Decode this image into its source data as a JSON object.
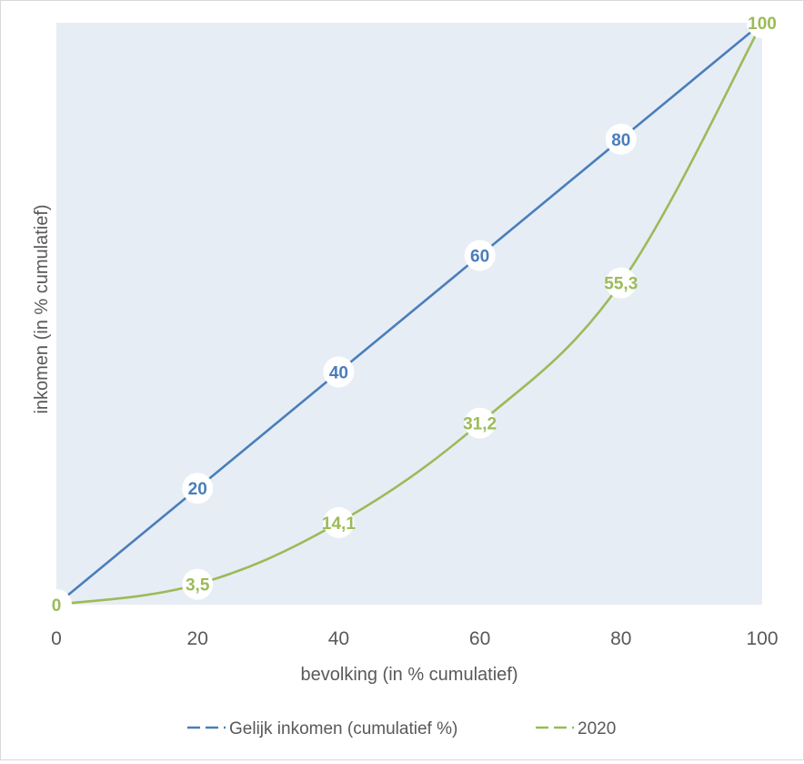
{
  "chart_data": {
    "type": "line",
    "title": "",
    "xlabel": "bevolking (in % cumulatief)",
    "ylabel": "inkomen (in % cumulatief)",
    "xlim": [
      0,
      100
    ],
    "ylim": [
      0,
      100
    ],
    "x_ticks": [
      "0",
      "20",
      "40",
      "60",
      "80",
      "100"
    ],
    "grid": false,
    "legend_position": "bottom",
    "plot_background": "#e7edf5",
    "x": [
      0,
      20,
      40,
      60,
      80,
      100
    ],
    "series": [
      {
        "name": "Gelijk inkomen (cumulatief %)",
        "color": "#4a7ebb",
        "values": [
          0,
          20,
          40,
          60,
          80,
          100
        ],
        "labels": [
          "",
          "20",
          "40",
          "60",
          "80",
          ""
        ],
        "smooth": false
      },
      {
        "name": "2020",
        "color": "#9bbb59",
        "values": [
          0,
          3.5,
          14.1,
          31.2,
          55.3,
          100
        ],
        "labels": [
          "0",
          "3,5",
          "14,1",
          "31,2",
          "55,3",
          "100"
        ],
        "smooth": true
      }
    ]
  }
}
